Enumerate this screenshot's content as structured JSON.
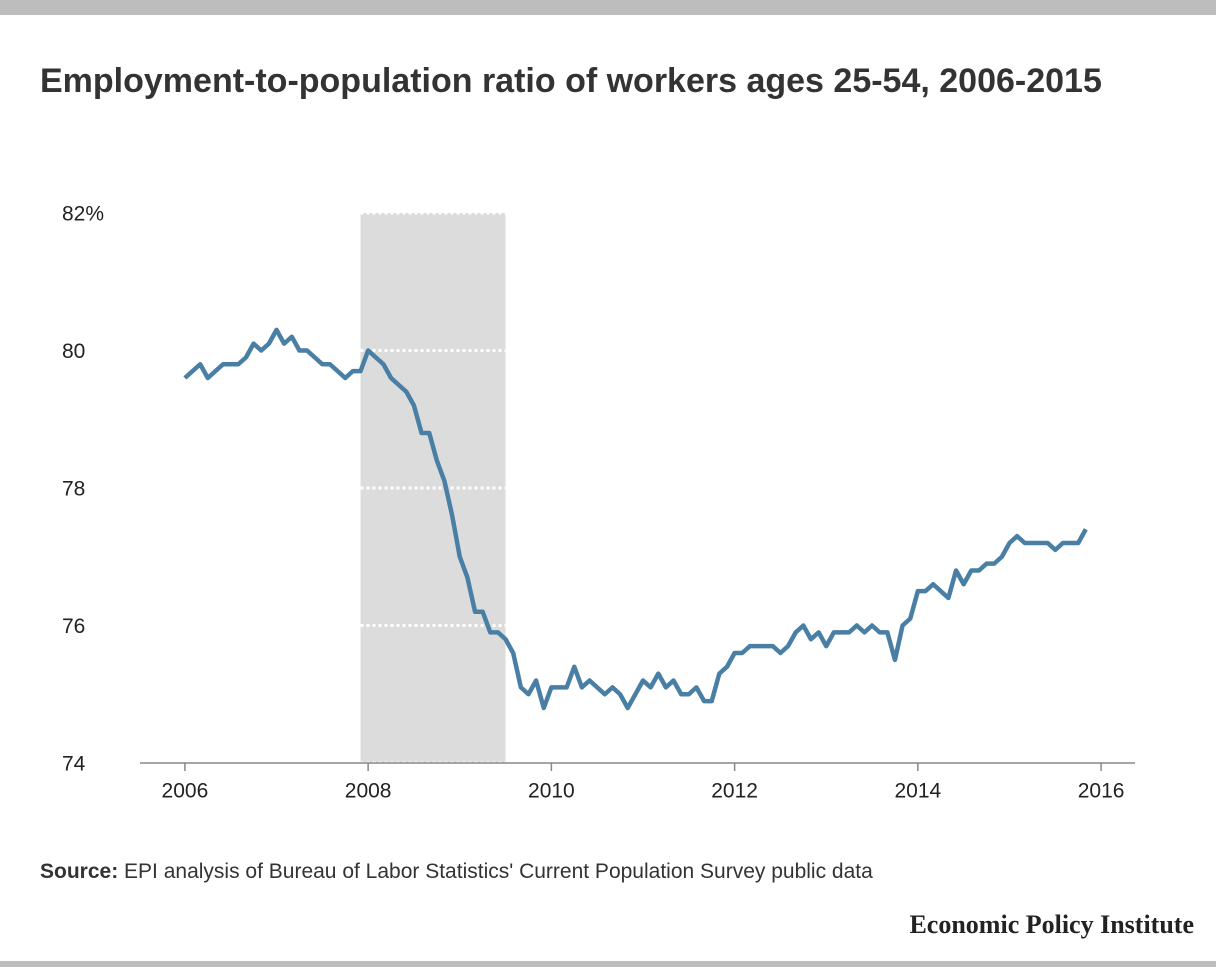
{
  "chart_data": {
    "type": "line",
    "title": "Employment-to-population ratio of workers ages 25-54, 2006-2015",
    "source_label": "Source:",
    "source": "EPI analysis of  Bureau of Labor Statistics' Current Population Survey public data",
    "brand": "Economic Policy Institute",
    "x": [
      2006,
      2006.083,
      2006.167,
      2006.25,
      2006.333,
      2006.417,
      2006.5,
      2006.583,
      2006.667,
      2006.75,
      2006.833,
      2006.917,
      2007,
      2007.083,
      2007.167,
      2007.25,
      2007.333,
      2007.417,
      2007.5,
      2007.583,
      2007.667,
      2007.75,
      2007.833,
      2007.917,
      2008,
      2008.083,
      2008.167,
      2008.25,
      2008.333,
      2008.417,
      2008.5,
      2008.583,
      2008.667,
      2008.75,
      2008.833,
      2008.917,
      2009,
      2009.083,
      2009.167,
      2009.25,
      2009.333,
      2009.417,
      2009.5,
      2009.583,
      2009.667,
      2009.75,
      2009.833,
      2009.917,
      2010,
      2010.083,
      2010.167,
      2010.25,
      2010.333,
      2010.417,
      2010.5,
      2010.583,
      2010.667,
      2010.75,
      2010.833,
      2010.917,
      2011,
      2011.083,
      2011.167,
      2011.25,
      2011.333,
      2011.417,
      2011.5,
      2011.583,
      2011.667,
      2011.75,
      2011.833,
      2011.917,
      2012,
      2012.083,
      2012.167,
      2012.25,
      2012.333,
      2012.417,
      2012.5,
      2012.583,
      2012.667,
      2012.75,
      2012.833,
      2012.917,
      2013,
      2013.083,
      2013.167,
      2013.25,
      2013.333,
      2013.417,
      2013.5,
      2013.583,
      2013.667,
      2013.75,
      2013.833,
      2013.917,
      2014,
      2014.083,
      2014.167,
      2014.25,
      2014.333,
      2014.417,
      2014.5,
      2014.583,
      2014.667,
      2014.75,
      2014.833,
      2014.917,
      2015,
      2015.083,
      2015.167,
      2015.25,
      2015.333,
      2015.417,
      2015.5,
      2015.583,
      2015.667,
      2015.75,
      2015.833
    ],
    "series": [
      {
        "name": "Employment-to-population ratio",
        "color": "#4a7fa5",
        "values": [
          79.6,
          79.7,
          79.8,
          79.6,
          79.7,
          79.8,
          79.8,
          79.8,
          79.9,
          80.1,
          80.0,
          80.1,
          80.3,
          80.1,
          80.2,
          80.0,
          80.0,
          79.9,
          79.8,
          79.8,
          79.7,
          79.6,
          79.7,
          79.7,
          80.0,
          79.9,
          79.8,
          79.6,
          79.5,
          79.4,
          79.2,
          78.8,
          78.8,
          78.4,
          78.1,
          77.6,
          77.0,
          76.7,
          76.2,
          76.2,
          75.9,
          75.9,
          75.8,
          75.6,
          75.1,
          75.0,
          75.2,
          74.8,
          75.1,
          75.1,
          75.1,
          75.4,
          75.1,
          75.2,
          75.1,
          75.0,
          75.1,
          75.0,
          74.8,
          75.0,
          75.2,
          75.1,
          75.3,
          75.1,
          75.2,
          75.0,
          75.0,
          75.1,
          74.9,
          74.9,
          75.3,
          75.4,
          75.6,
          75.6,
          75.7,
          75.7,
          75.7,
          75.7,
          75.6,
          75.7,
          75.9,
          76.0,
          75.8,
          75.9,
          75.7,
          75.9,
          75.9,
          75.9,
          76.0,
          75.9,
          76.0,
          75.9,
          75.9,
          75.5,
          76.0,
          76.1,
          76.5,
          76.5,
          76.6,
          76.5,
          76.4,
          76.8,
          76.6,
          76.8,
          76.8,
          76.9,
          76.9,
          77.0,
          77.2,
          77.3,
          77.2,
          77.2,
          77.2,
          77.2,
          77.1,
          77.2,
          77.2,
          77.2,
          77.4
        ]
      }
    ],
    "recession": [
      2007.917,
      2009.5
    ],
    "recession_color": "#dcdcdc",
    "xlim": [
      2005.51,
      2016.37
    ],
    "xticks": [
      2006,
      2008,
      2010,
      2012,
      2014,
      2016
    ],
    "ylim": [
      74,
      82
    ],
    "yticks": [
      74,
      76,
      78,
      80,
      {
        "value": 82,
        "label": "82%"
      }
    ],
    "grid": true
  }
}
